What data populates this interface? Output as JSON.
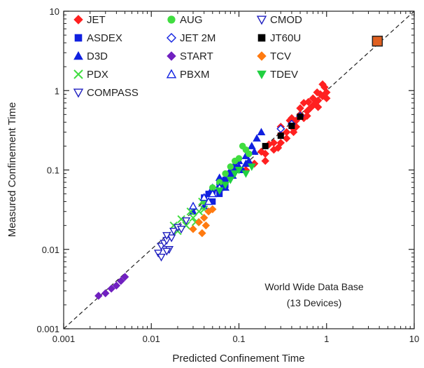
{
  "chart_data": {
    "type": "scatter",
    "x_scale": "log",
    "y_scale": "log",
    "xlim": [
      0.001,
      10
    ],
    "ylim": [
      0.001,
      10
    ],
    "xlabel": "Predicted Confinement Time",
    "ylabel": "Measured Confinement Time",
    "x_ticks": [
      "0.001",
      "0.01",
      "0.1",
      "1",
      "10"
    ],
    "y_ticks": [
      "0.001",
      "0.01",
      "0.1",
      "1",
      "10"
    ],
    "grid": false,
    "reference_line": "y = x (dashed)",
    "annotation": [
      "World Wide Data Base",
      "(13 Devices)"
    ],
    "legend_position": "top-left",
    "series": [
      {
        "name": "JET",
        "color": "#ff2020",
        "marker": "diamond",
        "points": [
          [
            0.15,
            0.12
          ],
          [
            0.2,
            0.16
          ],
          [
            0.25,
            0.22
          ],
          [
            0.3,
            0.28
          ],
          [
            0.35,
            0.3
          ],
          [
            0.4,
            0.35
          ],
          [
            0.45,
            0.42
          ],
          [
            0.5,
            0.5
          ],
          [
            0.6,
            0.55
          ],
          [
            0.7,
            0.65
          ],
          [
            0.8,
            0.75
          ],
          [
            0.9,
            0.85
          ],
          [
            1.0,
            0.95
          ],
          [
            0.55,
            0.45
          ],
          [
            0.65,
            0.6
          ],
          [
            0.75,
            0.7
          ],
          [
            0.85,
            0.9
          ],
          [
            0.95,
            1.1
          ],
          [
            0.3,
            0.35
          ],
          [
            0.4,
            0.45
          ],
          [
            0.5,
            0.6
          ],
          [
            0.35,
            0.25
          ],
          [
            0.45,
            0.35
          ],
          [
            0.6,
            0.48
          ],
          [
            0.7,
            0.8
          ],
          [
            0.2,
            0.13
          ],
          [
            0.25,
            0.18
          ],
          [
            0.3,
            0.22
          ],
          [
            0.12,
            0.1
          ],
          [
            0.18,
            0.17
          ],
          [
            0.9,
            1.2
          ],
          [
            1.0,
            0.8
          ],
          [
            0.8,
            0.62
          ],
          [
            0.55,
            0.7
          ],
          [
            0.42,
            0.3
          ],
          [
            0.28,
            0.19
          ],
          [
            0.22,
            0.21
          ],
          [
            0.38,
            0.42
          ],
          [
            0.62,
            0.72
          ],
          [
            0.78,
            0.95
          ]
        ]
      },
      {
        "name": "ASDEX",
        "color": "#1020e0",
        "marker": "square",
        "points": [
          [
            0.04,
            0.045
          ],
          [
            0.05,
            0.055
          ],
          [
            0.06,
            0.07
          ],
          [
            0.07,
            0.075
          ],
          [
            0.08,
            0.09
          ],
          [
            0.05,
            0.04
          ],
          [
            0.06,
            0.05
          ],
          [
            0.045,
            0.05
          ],
          [
            0.07,
            0.065
          ],
          [
            0.09,
            0.1
          ]
        ]
      },
      {
        "name": "D3D",
        "color": "#1020e0",
        "marker": "triangle",
        "points": [
          [
            0.05,
            0.06
          ],
          [
            0.06,
            0.065
          ],
          [
            0.07,
            0.08
          ],
          [
            0.08,
            0.1
          ],
          [
            0.09,
            0.12
          ],
          [
            0.1,
            0.13
          ],
          [
            0.12,
            0.15
          ],
          [
            0.14,
            0.2
          ],
          [
            0.16,
            0.25
          ],
          [
            0.11,
            0.1
          ],
          [
            0.13,
            0.13
          ],
          [
            0.15,
            0.17
          ],
          [
            0.07,
            0.06
          ],
          [
            0.085,
            0.085
          ],
          [
            0.1,
            0.11
          ],
          [
            0.12,
            0.12
          ],
          [
            0.18,
            0.3
          ],
          [
            0.06,
            0.08
          ],
          [
            0.04,
            0.035
          ],
          [
            0.03,
            0.03
          ]
        ]
      },
      {
        "name": "PDX",
        "color": "#40dd40",
        "marker": "cross",
        "points": [
          [
            0.02,
            0.017
          ],
          [
            0.025,
            0.02
          ],
          [
            0.03,
            0.025
          ],
          [
            0.035,
            0.03
          ],
          [
            0.04,
            0.032
          ],
          [
            0.022,
            0.024
          ],
          [
            0.028,
            0.03
          ],
          [
            0.018,
            0.02
          ],
          [
            0.032,
            0.022
          ],
          [
            0.038,
            0.04
          ]
        ]
      },
      {
        "name": "COMPASS",
        "color": "#2020c0",
        "marker": "triangle-down-open",
        "points": [
          [
            0.012,
            0.009
          ],
          [
            0.013,
            0.011
          ],
          [
            0.014,
            0.012
          ],
          [
            0.015,
            0.013
          ],
          [
            0.016,
            0.01
          ],
          [
            0.017,
            0.014
          ],
          [
            0.013,
            0.008
          ],
          [
            0.015,
            0.0095
          ]
        ]
      },
      {
        "name": "AUG",
        "color": "#40dd40",
        "marker": "circle",
        "points": [
          [
            0.04,
            0.04
          ],
          [
            0.05,
            0.06
          ],
          [
            0.06,
            0.07
          ],
          [
            0.07,
            0.09
          ],
          [
            0.08,
            0.11
          ],
          [
            0.1,
            0.14
          ],
          [
            0.12,
            0.18
          ],
          [
            0.09,
            0.13
          ],
          [
            0.11,
            0.2
          ],
          [
            0.13,
            0.16
          ]
        ]
      },
      {
        "name": "JET 2M",
        "color": "#1020e0",
        "marker": "diamond-open",
        "points": [
          [
            0.3,
            0.33
          ],
          [
            0.4,
            0.38
          ],
          [
            0.5,
            0.48
          ]
        ]
      },
      {
        "name": "START",
        "color": "#7020c0",
        "marker": "diamond",
        "points": [
          [
            0.0025,
            0.0026
          ],
          [
            0.003,
            0.0028
          ],
          [
            0.0035,
            0.0032
          ],
          [
            0.004,
            0.0035
          ],
          [
            0.0045,
            0.004
          ],
          [
            0.005,
            0.0045
          ]
        ]
      },
      {
        "name": "PBXM",
        "color": "#1020e0",
        "marker": "triangle-open",
        "points": [
          [
            0.03,
            0.035
          ],
          [
            0.04,
            0.045
          ],
          [
            0.05,
            0.05
          ],
          [
            0.06,
            0.06
          ],
          [
            0.045,
            0.04
          ]
        ]
      },
      {
        "name": "CMOD",
        "color": "#2020c0",
        "marker": "triangle-down-open",
        "points": [
          [
            0.015,
            0.015
          ],
          [
            0.018,
            0.017
          ],
          [
            0.02,
            0.019
          ],
          [
            0.022,
            0.018
          ],
          [
            0.025,
            0.023
          ]
        ]
      },
      {
        "name": "JT60U",
        "color": "#000000",
        "marker": "square",
        "points": [
          [
            0.2,
            0.2
          ],
          [
            0.3,
            0.27
          ],
          [
            0.4,
            0.36
          ],
          [
            0.5,
            0.47
          ],
          [
            3.8,
            4.2
          ]
        ]
      },
      {
        "name": "TCV",
        "color": "#ff7a10",
        "marker": "diamond",
        "points": [
          [
            0.03,
            0.018
          ],
          [
            0.035,
            0.022
          ],
          [
            0.04,
            0.025
          ],
          [
            0.045,
            0.03
          ],
          [
            0.05,
            0.032
          ],
          [
            0.038,
            0.016
          ],
          [
            0.042,
            0.02
          ]
        ]
      },
      {
        "name": "TDEV",
        "color": "#20d040",
        "marker": "triangle-down",
        "points": [
          [
            0.06,
            0.055
          ],
          [
            0.07,
            0.065
          ],
          [
            0.08,
            0.075
          ],
          [
            0.09,
            0.09
          ],
          [
            0.1,
            0.1
          ],
          [
            0.12,
            0.09
          ],
          [
            0.14,
            0.11
          ]
        ]
      }
    ]
  }
}
